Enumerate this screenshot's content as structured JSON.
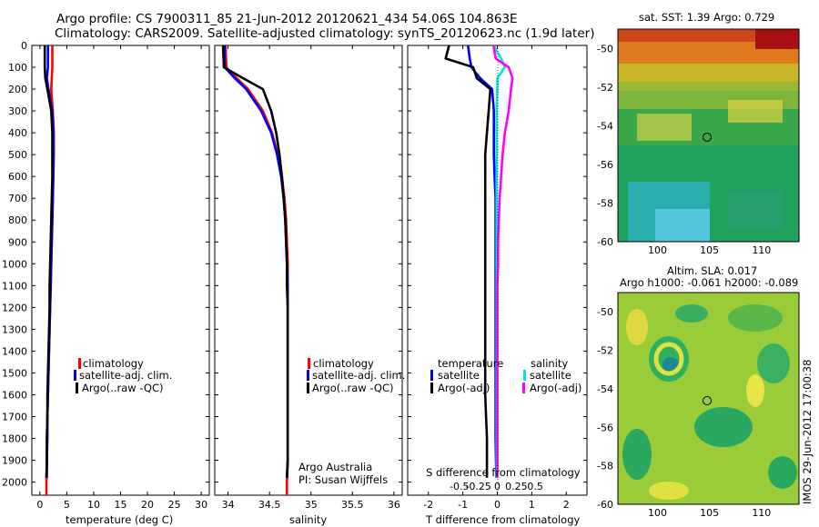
{
  "header": {
    "line1": "Argo profile: CS 7900311_85 21-Jun-2012 20120621_434 54.06S 104.863E",
    "line2": "Climatology: CARS2009. Satellite-adjusted climatology: synTS_20120623.nc (1.9d later)"
  },
  "depth_ticks": [
    "0",
    "100",
    "200",
    "300",
    "400",
    "500",
    "600",
    "700",
    "800",
    "900",
    "1000",
    "1100",
    "1200",
    "1300",
    "1400",
    "1500",
    "1600",
    "1700",
    "1800",
    "1900",
    "2000"
  ],
  "panels": {
    "temperature": {
      "xlabel": "temperature (deg C)",
      "xticks": [
        "0",
        "5",
        "10",
        "15",
        "20",
        "25",
        "30"
      ],
      "legend": [
        "climatology",
        "satellite-adj. clim.",
        "Argo(..raw -QC)"
      ]
    },
    "salinity": {
      "xlabel": "salinity",
      "xticks": [
        "34",
        "34.5",
        "35",
        "35.5",
        "36"
      ],
      "legend": [
        "climatology",
        "satellite-adj. clim.",
        "Argo(..raw -QC)"
      ],
      "credit1": "Argo Australia",
      "credit2": "PI: Susan Wijffels"
    },
    "difference": {
      "xlabel": "T difference from climatology",
      "xticks": [
        "-2",
        "-1",
        "0",
        "1",
        "2"
      ],
      "s_label": "S difference from climatology",
      "s_ticks": [
        "-0.5",
        "-0.25",
        "0",
        "0.25",
        "0.5"
      ],
      "temp_title": "temperature",
      "sal_title": "salinity",
      "legend_temp": [
        "satellite",
        "Argo(-adj)"
      ],
      "legend_sal": [
        "satellite",
        "Argo(-adj)"
      ]
    },
    "sst_map": {
      "title": "sat. SST: 1.39 Argo: 0.729",
      "yticks": [
        "-50",
        "-52",
        "-54",
        "-56",
        "-58",
        "-60"
      ],
      "xticks": [
        "100",
        "105",
        "110"
      ]
    },
    "sla_map": {
      "title1": "Altim. SLA: 0.017",
      "title2": "Argo h1000: -0.061 h2000: -0.089",
      "yticks": [
        "-50",
        "-52",
        "-54",
        "-56",
        "-58",
        "-60"
      ],
      "xticks": [
        "100",
        "105",
        "110"
      ]
    }
  },
  "footer_stamp": "IMOS 29-Jun-2012 17:00:38",
  "colors": {
    "climatology": "#ff0000",
    "satellite_adj": "#0000ff",
    "argo": "#000000",
    "sat_salinity": "#00e5e5",
    "argo_salinity": "#ff00ff"
  },
  "chart_data": [
    {
      "type": "line",
      "xlabel": "temperature (deg C)",
      "ylabel": "",
      "xlim": [
        -1.5,
        31.5
      ],
      "ylim": [
        2060,
        0
      ],
      "series": [
        {
          "name": "climatology",
          "x": [
            2.3,
            2.3,
            2.2,
            2.1,
            2.4,
            2.6,
            2.6,
            2.5,
            2.4,
            2.3,
            2.2,
            2.1,
            2.0,
            1.9,
            1.8,
            1.7,
            1.6,
            1.5,
            1.4,
            1.3,
            1.3,
            1.2,
            1.2
          ],
          "y": [
            0,
            100,
            150,
            200,
            300,
            400,
            500,
            600,
            700,
            800,
            900,
            1000,
            1100,
            1200,
            1300,
            1400,
            1500,
            1600,
            1700,
            1800,
            1900,
            2000,
            2060
          ]
        },
        {
          "name": "satellite-adj. clim.",
          "x": [
            1.5,
            1.5,
            1.3,
            1.6,
            2.3,
            2.5,
            2.5,
            2.5,
            2.4,
            2.3,
            2.2,
            2.1,
            2.0,
            1.9,
            1.8,
            1.7,
            1.6,
            1.5,
            1.4,
            1.4,
            1.3,
            1.3
          ],
          "y": [
            0,
            100,
            150,
            200,
            300,
            400,
            500,
            600,
            700,
            800,
            900,
            1000,
            1100,
            1200,
            1300,
            1400,
            1500,
            1600,
            1700,
            1800,
            1900,
            1980
          ]
        },
        {
          "name": "Argo(..raw -QC)",
          "x": [
            0.9,
            0.9,
            1.0,
            1.4,
            2.1,
            2.3,
            2.3,
            2.3,
            2.2,
            2.1,
            2.0,
            1.9,
            1.8,
            1.8,
            1.7,
            1.6,
            1.5,
            1.4,
            1.4,
            1.3,
            1.3,
            1.2
          ],
          "y": [
            0,
            100,
            150,
            200,
            300,
            400,
            500,
            600,
            700,
            800,
            900,
            1000,
            1100,
            1200,
            1300,
            1400,
            1500,
            1600,
            1700,
            1800,
            1900,
            1980
          ]
        }
      ]
    },
    {
      "type": "line",
      "xlabel": "salinity",
      "ylabel": "",
      "xlim": [
        33.84,
        36.1
      ],
      "ylim": [
        2060,
        0
      ],
      "series": [
        {
          "name": "climatology",
          "x": [
            33.97,
            33.98,
            34.05,
            34.24,
            34.42,
            34.53,
            34.6,
            34.65,
            34.68,
            34.7,
            34.71,
            34.72,
            34.72,
            34.72,
            34.72,
            34.72,
            34.72,
            34.72,
            34.72,
            34.72,
            34.72,
            34.71,
            34.71
          ],
          "y": [
            0,
            100,
            130,
            200,
            300,
            400,
            500,
            600,
            700,
            800,
            900,
            1000,
            1100,
            1200,
            1300,
            1400,
            1500,
            1600,
            1700,
            1800,
            1900,
            2000,
            2060
          ]
        },
        {
          "name": "satellite-adj. clim.",
          "x": [
            33.96,
            33.96,
            34.08,
            34.22,
            34.4,
            34.52,
            34.59,
            34.64,
            34.67,
            34.69,
            34.7,
            34.71,
            34.72,
            34.72,
            34.72,
            34.72,
            34.72,
            34.72,
            34.72,
            34.72,
            34.72,
            34.71
          ],
          "y": [
            0,
            100,
            150,
            200,
            300,
            400,
            500,
            600,
            700,
            800,
            900,
            1000,
            1100,
            1200,
            1300,
            1400,
            1500,
            1600,
            1700,
            1800,
            1900,
            1980
          ]
        },
        {
          "name": "Argo(..raw -QC)",
          "x": [
            33.94,
            33.95,
            34.18,
            34.42,
            34.52,
            34.58,
            34.62,
            34.65,
            34.67,
            34.69,
            34.7,
            34.71,
            34.71,
            34.72,
            34.72,
            34.72,
            34.72,
            34.72,
            34.72,
            34.72,
            34.72,
            34.71
          ],
          "y": [
            0,
            100,
            150,
            200,
            300,
            400,
            500,
            600,
            700,
            800,
            900,
            1000,
            1100,
            1200,
            1300,
            1400,
            1500,
            1600,
            1700,
            1800,
            1900,
            1980
          ]
        }
      ]
    },
    {
      "type": "line",
      "xlabel": "T difference from climatology",
      "ylabel": "",
      "xlim": [
        -2.6,
        2.6
      ],
      "ylim": [
        2060,
        0
      ],
      "series": [
        {
          "name": "temperature satellite",
          "axis": "T",
          "x": [
            -0.85,
            -0.8,
            -0.75,
            -0.5,
            -0.15,
            -0.1,
            -0.1,
            -0.1,
            -0.08,
            -0.05,
            -0.05,
            -0.05,
            -0.05,
            -0.05,
            -0.05,
            -0.05,
            -0.05,
            -0.05,
            -0.05,
            -0.05,
            -0.03
          ],
          "y": [
            0,
            60,
            100,
            150,
            200,
            300,
            400,
            500,
            600,
            700,
            800,
            900,
            1000,
            1100,
            1200,
            1300,
            1400,
            1500,
            1600,
            1800,
            1980
          ]
        },
        {
          "name": "temperature Argo(-adj)",
          "axis": "T",
          "x": [
            -1.4,
            -1.5,
            -0.7,
            -0.6,
            -0.2,
            -0.25,
            -0.3,
            -0.35,
            -0.35,
            -0.35,
            -0.35,
            -0.35,
            -0.35,
            -0.35,
            -0.35,
            -0.35,
            -0.35,
            -0.35,
            -0.35,
            -0.3,
            -0.3
          ],
          "y": [
            0,
            60,
            100,
            150,
            200,
            300,
            400,
            500,
            600,
            700,
            800,
            900,
            1000,
            1100,
            1200,
            1300,
            1400,
            1500,
            1600,
            1800,
            1980
          ]
        },
        {
          "name": "salinity satellite",
          "axis": "S",
          "x": [
            -0.05,
            0.05,
            0.1,
            0.0,
            0.0,
            -0.01,
            -0.01,
            -0.01,
            -0.01,
            -0.01,
            -0.01,
            -0.01,
            -0.01,
            -0.01,
            -0.01,
            -0.01,
            -0.01,
            -0.01,
            -0.01,
            -0.01,
            -0.01
          ],
          "y": [
            0,
            60,
            100,
            150,
            200,
            300,
            400,
            500,
            600,
            700,
            800,
            900,
            1000,
            1100,
            1200,
            1300,
            1400,
            1500,
            1600,
            1800,
            1980
          ]
        },
        {
          "name": "salinity Argo(-adj)",
          "axis": "S",
          "x": [
            -0.05,
            -0.02,
            0.15,
            0.2,
            0.18,
            0.15,
            0.1,
            0.07,
            0.05,
            0.03,
            0.02,
            0.01,
            0.01,
            0.0,
            0.0,
            0.0,
            0.0,
            0.0,
            0.0,
            0.0,
            0.0
          ],
          "y": [
            0,
            60,
            100,
            150,
            200,
            300,
            400,
            500,
            600,
            700,
            800,
            900,
            1000,
            1100,
            1200,
            1300,
            1400,
            1500,
            1600,
            1800,
            1980
          ]
        }
      ]
    }
  ]
}
